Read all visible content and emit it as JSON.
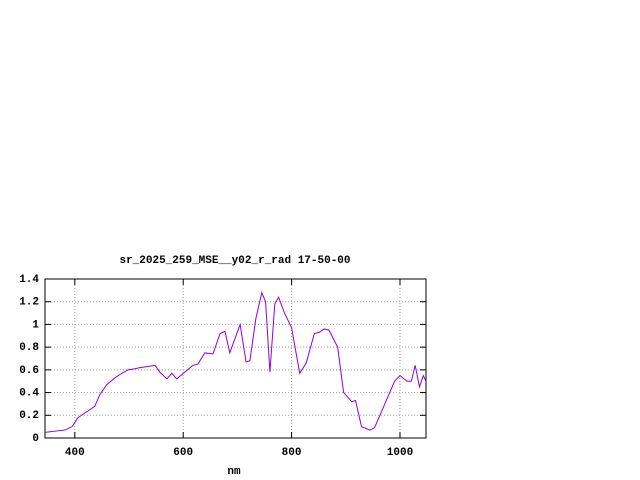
{
  "chart_data": {
    "type": "line",
    "title": "sr_2025_259_MSE__y02_r_rad 17-50-00",
    "x_label": "nm",
    "x": [
      345,
      363,
      382,
      395,
      406,
      425,
      437,
      446,
      459,
      474,
      487,
      498,
      511,
      520,
      535,
      548,
      557,
      570,
      579,
      588,
      603,
      618,
      627,
      640,
      655,
      668,
      677,
      686,
      705,
      716,
      723,
      734,
      745,
      752,
      760,
      769,
      776,
      787,
      800,
      815,
      827,
      842,
      851,
      860,
      869,
      885,
      896,
      911,
      918,
      929,
      944,
      953,
      972,
      990,
      1000,
      1013,
      1021,
      1028,
      1036,
      1043,
      1048
    ],
    "series": [
      {
        "color": "#9400d3",
        "values": [
          0.05,
          0.06,
          0.07,
          0.1,
          0.18,
          0.24,
          0.28,
          0.38,
          0.47,
          0.53,
          0.57,
          0.6,
          0.61,
          0.62,
          0.63,
          0.64,
          0.58,
          0.52,
          0.57,
          0.52,
          0.58,
          0.64,
          0.65,
          0.75,
          0.74,
          0.92,
          0.94,
          0.75,
          1.0,
          0.67,
          0.68,
          1.05,
          1.28,
          1.2,
          0.58,
          1.18,
          1.24,
          1.1,
          0.97,
          0.57,
          0.66,
          0.92,
          0.93,
          0.96,
          0.95,
          0.8,
          0.4,
          0.32,
          0.33,
          0.1,
          0.07,
          0.09,
          0.3,
          0.5,
          0.55,
          0.5,
          0.5,
          0.64,
          0.45,
          0.55,
          0.5
        ]
      }
    ],
    "xlim": [
      345,
      1048
    ],
    "xticks": [
      400,
      600,
      800,
      1000
    ],
    "ylim": [
      0,
      1.4
    ],
    "yticks": [
      0,
      0.2,
      0.4,
      0.6,
      0.8,
      1,
      1.2,
      1.4
    ],
    "grid": true
  }
}
